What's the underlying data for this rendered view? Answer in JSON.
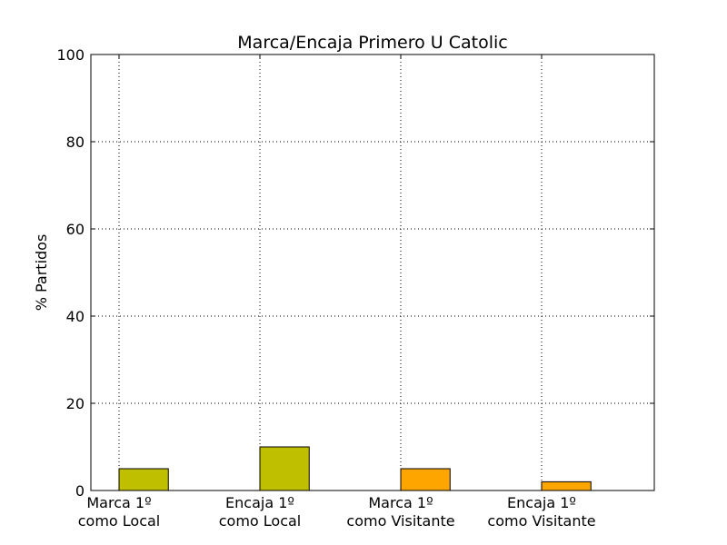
{
  "chart_data": {
    "type": "bar",
    "title": "Marca/Encaja Primero  U Catolic",
    "xlabel": "",
    "ylabel": "% Partidos",
    "ylim": [
      0,
      100
    ],
    "yticks": [
      0,
      20,
      40,
      60,
      80,
      100
    ],
    "grid": true,
    "categories": [
      [
        "Marca 1º",
        "como Local"
      ],
      [
        "Encaja 1º",
        "como Local"
      ],
      [
        "Marca 1º",
        "como Visitante"
      ],
      [
        "Encaja 1º",
        "como Visitante"
      ]
    ],
    "values": [
      5,
      10,
      5,
      2
    ],
    "colors": [
      "#bfbf00",
      "#bfbf00",
      "#ffa500",
      "#ffa500"
    ]
  }
}
